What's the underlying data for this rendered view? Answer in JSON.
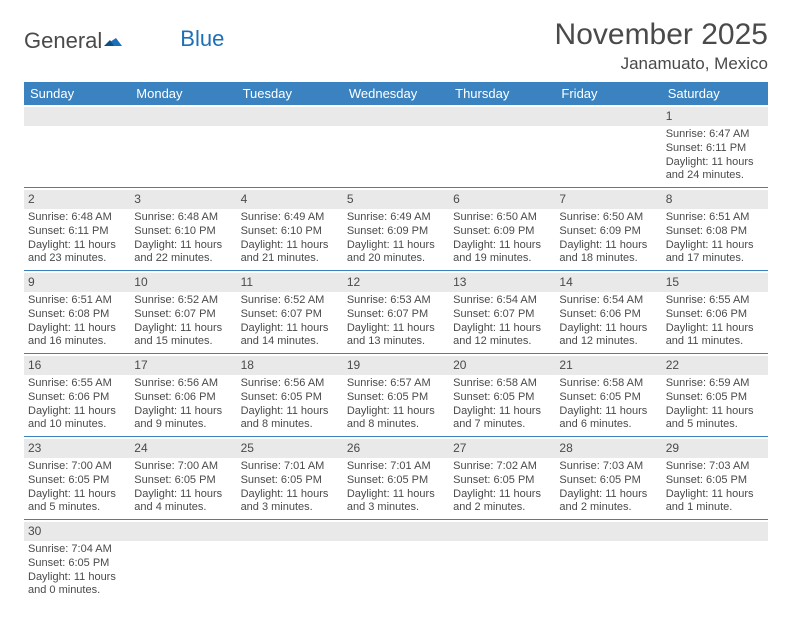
{
  "logo": {
    "text_a": "General",
    "text_b": "Blue"
  },
  "title": "November 2025",
  "location": "Janamuato, Mexico",
  "colors": {
    "header_bg": "#3b83c0",
    "header_text": "#ffffff",
    "daynum_bg": "#e9e9e9",
    "text": "#4a4a4a",
    "rule": "#3b83c0",
    "logo_blue": "#1d6fb8"
  },
  "dow": [
    "Sunday",
    "Monday",
    "Tuesday",
    "Wednesday",
    "Thursday",
    "Friday",
    "Saturday"
  ],
  "weeks": [
    [
      {
        "n": "",
        "sr": "",
        "ss": "",
        "dl": ""
      },
      {
        "n": "",
        "sr": "",
        "ss": "",
        "dl": ""
      },
      {
        "n": "",
        "sr": "",
        "ss": "",
        "dl": ""
      },
      {
        "n": "",
        "sr": "",
        "ss": "",
        "dl": ""
      },
      {
        "n": "",
        "sr": "",
        "ss": "",
        "dl": ""
      },
      {
        "n": "",
        "sr": "",
        "ss": "",
        "dl": ""
      },
      {
        "n": "1",
        "sr": "Sunrise: 6:47 AM",
        "ss": "Sunset: 6:11 PM",
        "dl": "Daylight: 11 hours and 24 minutes."
      }
    ],
    [
      {
        "n": "2",
        "sr": "Sunrise: 6:48 AM",
        "ss": "Sunset: 6:11 PM",
        "dl": "Daylight: 11 hours and 23 minutes."
      },
      {
        "n": "3",
        "sr": "Sunrise: 6:48 AM",
        "ss": "Sunset: 6:10 PM",
        "dl": "Daylight: 11 hours and 22 minutes."
      },
      {
        "n": "4",
        "sr": "Sunrise: 6:49 AM",
        "ss": "Sunset: 6:10 PM",
        "dl": "Daylight: 11 hours and 21 minutes."
      },
      {
        "n": "5",
        "sr": "Sunrise: 6:49 AM",
        "ss": "Sunset: 6:09 PM",
        "dl": "Daylight: 11 hours and 20 minutes."
      },
      {
        "n": "6",
        "sr": "Sunrise: 6:50 AM",
        "ss": "Sunset: 6:09 PM",
        "dl": "Daylight: 11 hours and 19 minutes."
      },
      {
        "n": "7",
        "sr": "Sunrise: 6:50 AM",
        "ss": "Sunset: 6:09 PM",
        "dl": "Daylight: 11 hours and 18 minutes."
      },
      {
        "n": "8",
        "sr": "Sunrise: 6:51 AM",
        "ss": "Sunset: 6:08 PM",
        "dl": "Daylight: 11 hours and 17 minutes."
      }
    ],
    [
      {
        "n": "9",
        "sr": "Sunrise: 6:51 AM",
        "ss": "Sunset: 6:08 PM",
        "dl": "Daylight: 11 hours and 16 minutes."
      },
      {
        "n": "10",
        "sr": "Sunrise: 6:52 AM",
        "ss": "Sunset: 6:07 PM",
        "dl": "Daylight: 11 hours and 15 minutes."
      },
      {
        "n": "11",
        "sr": "Sunrise: 6:52 AM",
        "ss": "Sunset: 6:07 PM",
        "dl": "Daylight: 11 hours and 14 minutes."
      },
      {
        "n": "12",
        "sr": "Sunrise: 6:53 AM",
        "ss": "Sunset: 6:07 PM",
        "dl": "Daylight: 11 hours and 13 minutes."
      },
      {
        "n": "13",
        "sr": "Sunrise: 6:54 AM",
        "ss": "Sunset: 6:07 PM",
        "dl": "Daylight: 11 hours and 12 minutes."
      },
      {
        "n": "14",
        "sr": "Sunrise: 6:54 AM",
        "ss": "Sunset: 6:06 PM",
        "dl": "Daylight: 11 hours and 12 minutes."
      },
      {
        "n": "15",
        "sr": "Sunrise: 6:55 AM",
        "ss": "Sunset: 6:06 PM",
        "dl": "Daylight: 11 hours and 11 minutes."
      }
    ],
    [
      {
        "n": "16",
        "sr": "Sunrise: 6:55 AM",
        "ss": "Sunset: 6:06 PM",
        "dl": "Daylight: 11 hours and 10 minutes."
      },
      {
        "n": "17",
        "sr": "Sunrise: 6:56 AM",
        "ss": "Sunset: 6:06 PM",
        "dl": "Daylight: 11 hours and 9 minutes."
      },
      {
        "n": "18",
        "sr": "Sunrise: 6:56 AM",
        "ss": "Sunset: 6:05 PM",
        "dl": "Daylight: 11 hours and 8 minutes."
      },
      {
        "n": "19",
        "sr": "Sunrise: 6:57 AM",
        "ss": "Sunset: 6:05 PM",
        "dl": "Daylight: 11 hours and 8 minutes."
      },
      {
        "n": "20",
        "sr": "Sunrise: 6:58 AM",
        "ss": "Sunset: 6:05 PM",
        "dl": "Daylight: 11 hours and 7 minutes."
      },
      {
        "n": "21",
        "sr": "Sunrise: 6:58 AM",
        "ss": "Sunset: 6:05 PM",
        "dl": "Daylight: 11 hours and 6 minutes."
      },
      {
        "n": "22",
        "sr": "Sunrise: 6:59 AM",
        "ss": "Sunset: 6:05 PM",
        "dl": "Daylight: 11 hours and 5 minutes."
      }
    ],
    [
      {
        "n": "23",
        "sr": "Sunrise: 7:00 AM",
        "ss": "Sunset: 6:05 PM",
        "dl": "Daylight: 11 hours and 5 minutes."
      },
      {
        "n": "24",
        "sr": "Sunrise: 7:00 AM",
        "ss": "Sunset: 6:05 PM",
        "dl": "Daylight: 11 hours and 4 minutes."
      },
      {
        "n": "25",
        "sr": "Sunrise: 7:01 AM",
        "ss": "Sunset: 6:05 PM",
        "dl": "Daylight: 11 hours and 3 minutes."
      },
      {
        "n": "26",
        "sr": "Sunrise: 7:01 AM",
        "ss": "Sunset: 6:05 PM",
        "dl": "Daylight: 11 hours and 3 minutes."
      },
      {
        "n": "27",
        "sr": "Sunrise: 7:02 AM",
        "ss": "Sunset: 6:05 PM",
        "dl": "Daylight: 11 hours and 2 minutes."
      },
      {
        "n": "28",
        "sr": "Sunrise: 7:03 AM",
        "ss": "Sunset: 6:05 PM",
        "dl": "Daylight: 11 hours and 2 minutes."
      },
      {
        "n": "29",
        "sr": "Sunrise: 7:03 AM",
        "ss": "Sunset: 6:05 PM",
        "dl": "Daylight: 11 hours and 1 minute."
      }
    ],
    [
      {
        "n": "30",
        "sr": "Sunrise: 7:04 AM",
        "ss": "Sunset: 6:05 PM",
        "dl": "Daylight: 11 hours and 0 minutes."
      },
      {
        "n": "",
        "sr": "",
        "ss": "",
        "dl": ""
      },
      {
        "n": "",
        "sr": "",
        "ss": "",
        "dl": ""
      },
      {
        "n": "",
        "sr": "",
        "ss": "",
        "dl": ""
      },
      {
        "n": "",
        "sr": "",
        "ss": "",
        "dl": ""
      },
      {
        "n": "",
        "sr": "",
        "ss": "",
        "dl": ""
      },
      {
        "n": "",
        "sr": "",
        "ss": "",
        "dl": ""
      }
    ]
  ]
}
